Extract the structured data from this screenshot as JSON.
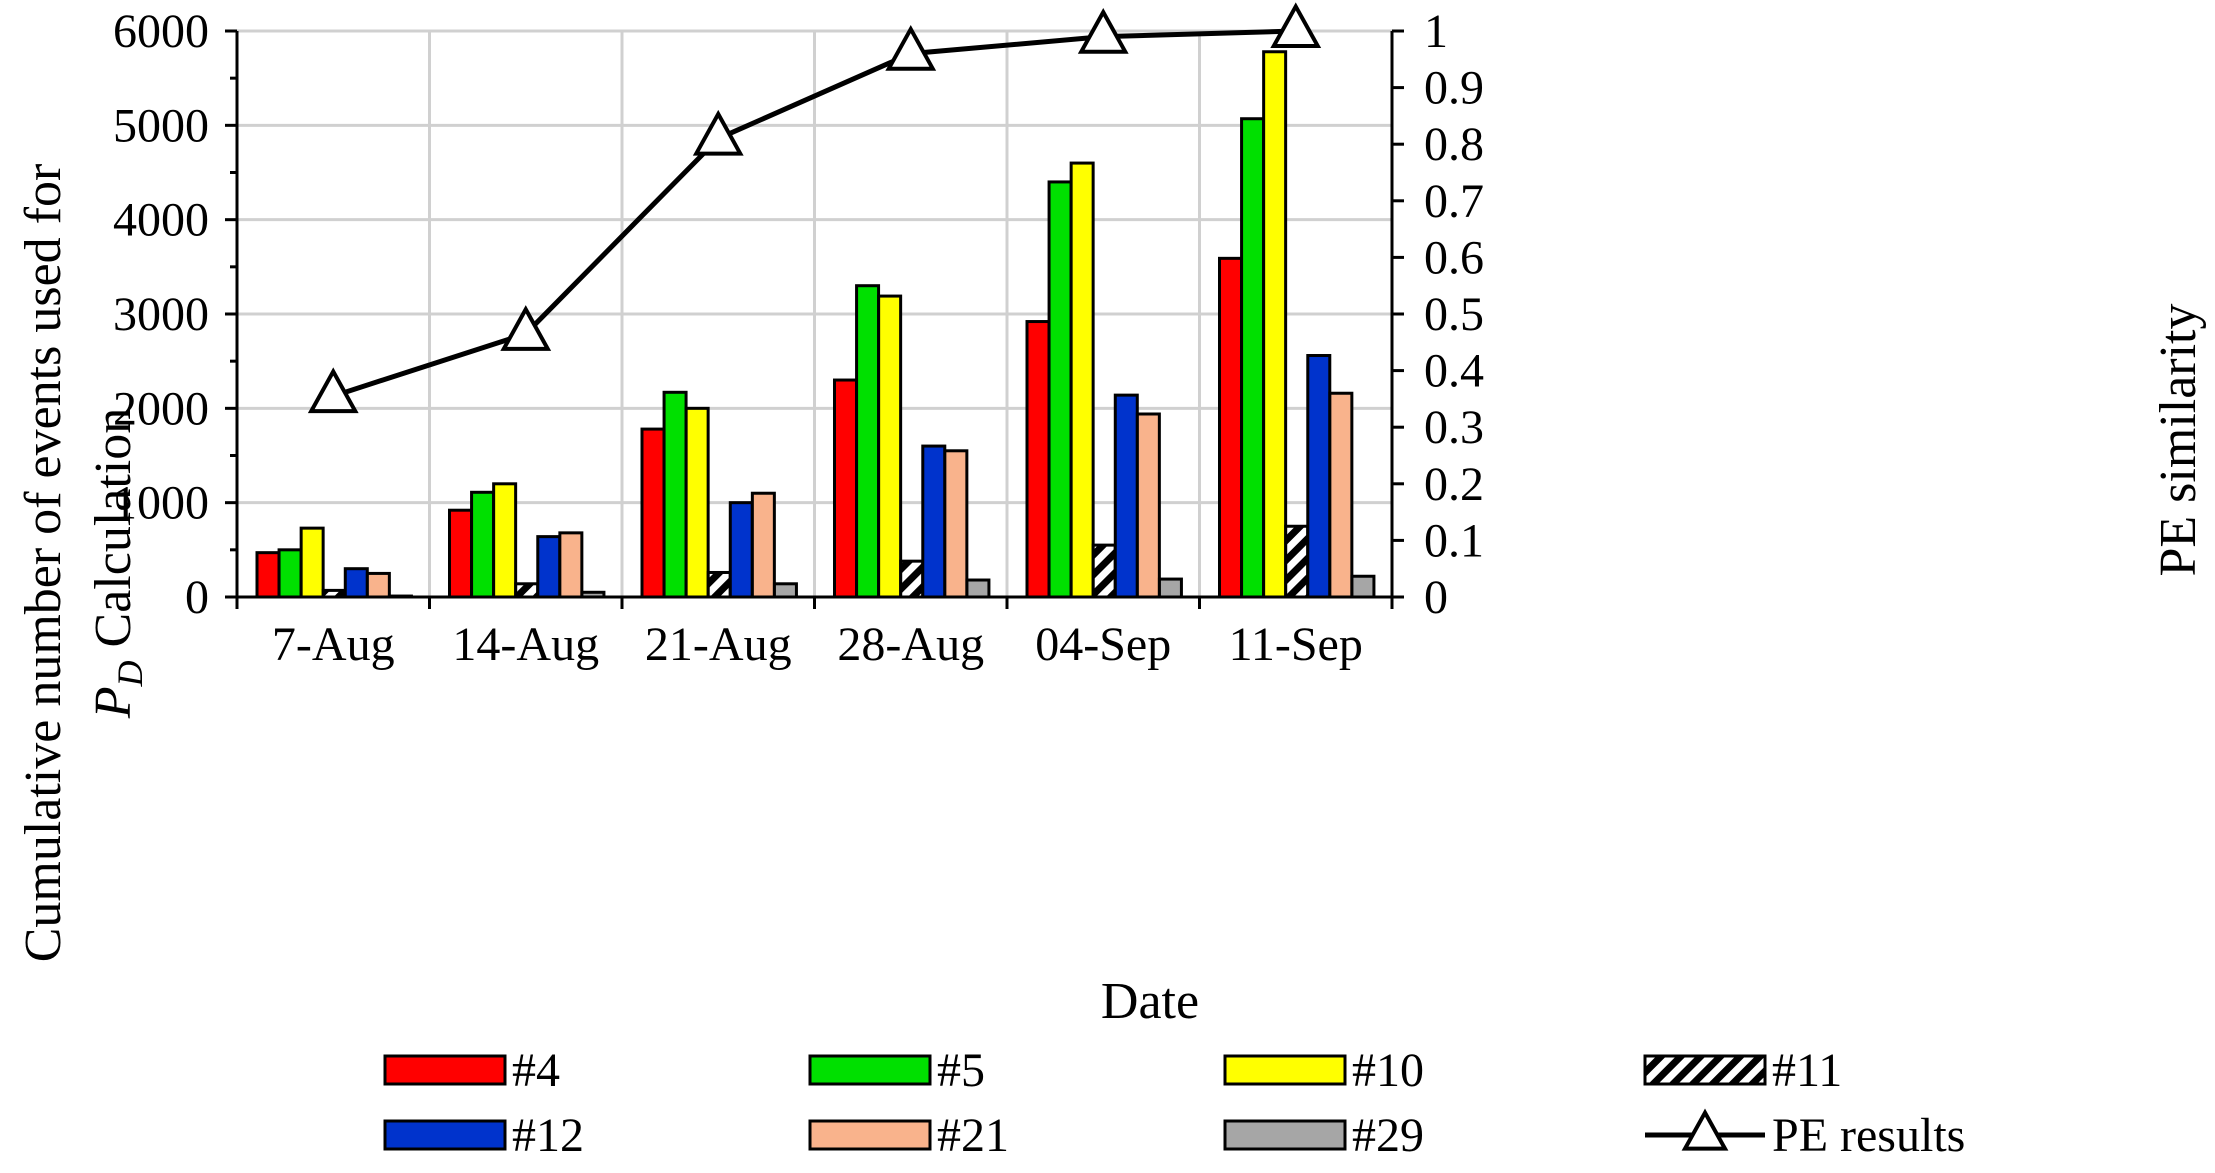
{
  "chart_data": {
    "type": "bar",
    "categories": [
      "7-Aug",
      "14-Aug",
      "21-Aug",
      "28-Aug",
      "04-Sep",
      "11-Sep"
    ],
    "xlabel": "Date",
    "ylabel_line1": "Cumulative number of events  used for",
    "ylabel_line2_symbol": "P",
    "ylabel_line2_subscript": "D",
    "ylabel_line2_rest": " Calculation",
    "y2label": "PE similarity",
    "ylim": [
      0,
      6000
    ],
    "y_ticks": [
      "0",
      "1000",
      "2000",
      "3000",
      "4000",
      "5000",
      "6000"
    ],
    "y2lim": [
      0,
      1
    ],
    "y2_ticks": [
      "0",
      "0.1",
      "0.2",
      "0.3",
      "0.4",
      "0.5",
      "0.6",
      "0.7",
      "0.8",
      "0.9",
      "1"
    ],
    "series": [
      {
        "name": "#4",
        "color": "#ff0000",
        "pattern": "solid",
        "values": [
          470,
          920,
          1780,
          2300,
          2920,
          3590
        ]
      },
      {
        "name": "#5",
        "color": "#00e000",
        "pattern": "solid",
        "values": [
          500,
          1110,
          2170,
          3300,
          4400,
          5070
        ]
      },
      {
        "name": "#10",
        "color": "#ffff00",
        "pattern": "solid",
        "values": [
          730,
          1200,
          2000,
          3190,
          4600,
          5780
        ]
      },
      {
        "name": "#11",
        "color": "#000000",
        "pattern": "hatched",
        "values": [
          70,
          140,
          260,
          380,
          550,
          750
        ]
      },
      {
        "name": "#12",
        "color": "#0033cc",
        "pattern": "solid",
        "values": [
          300,
          640,
          1000,
          1600,
          2140,
          2560
        ]
      },
      {
        "name": "#21",
        "color": "#f9b38c",
        "pattern": "solid",
        "values": [
          250,
          680,
          1100,
          1550,
          1940,
          2160
        ]
      },
      {
        "name": "#29",
        "color": "#a6a6a6",
        "pattern": "solid",
        "values": [
          10,
          50,
          140,
          180,
          190,
          220
        ]
      }
    ],
    "line_series": {
      "name": "PE results",
      "axis": "secondary",
      "values": [
        0.355,
        0.465,
        0.81,
        0.96,
        0.99,
        1.0
      ]
    },
    "legend_position": "bottom"
  }
}
